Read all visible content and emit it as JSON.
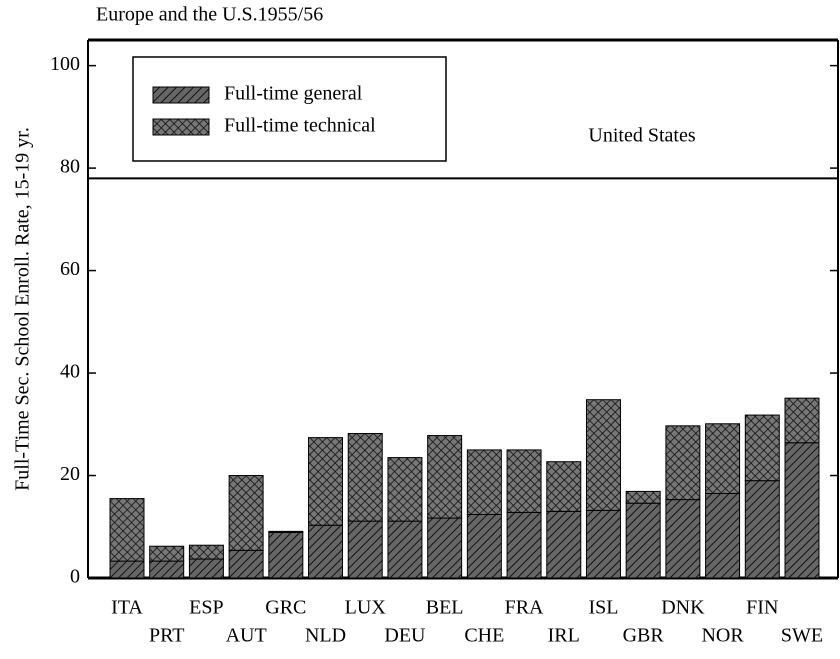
{
  "chart_data": {
    "type": "stacked-bar",
    "title": "Europe and the U.S.1955/56",
    "y_label": "Full-Time Sec. School Enroll. Rate, 15-19 yr.",
    "categories": [
      "ITA",
      "PRT",
      "ESP",
      "AUT",
      "GRC",
      "NLD",
      "LUX",
      "DEU",
      "BEL",
      "CHE",
      "FRA",
      "IRL",
      "ISL",
      "GBR",
      "DNK",
      "NOR",
      "FIN",
      "SWE"
    ],
    "series": [
      {
        "name": "Full-time general",
        "color": "#555555",
        "pattern": "diagonal",
        "values": [
          3.3,
          3.3,
          3.7,
          5.4,
          8.9,
          10.3,
          11.1,
          11.1,
          11.7,
          12.4,
          12.8,
          13.0,
          13.2,
          14.6,
          15.3,
          16.5,
          19.0,
          26.4
        ]
      },
      {
        "name": "Full-time technical",
        "color": "#555555",
        "pattern": "crosshatch",
        "values": [
          12.2,
          2.9,
          2.7,
          14.6,
          0.2,
          17.1,
          17.1,
          12.4,
          16.1,
          12.6,
          12.2,
          9.7,
          21.6,
          2.3,
          14.4,
          13.6,
          12.8,
          8.7
        ]
      }
    ],
    "reference_line": {
      "value": 78,
      "label": "United States"
    },
    "ylim": [
      0,
      105
    ],
    "yticks": [
      0,
      20,
      40,
      60,
      80,
      100
    ],
    "legend": "upper left"
  }
}
